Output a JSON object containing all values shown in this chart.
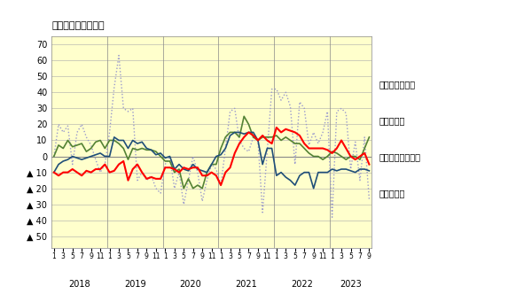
{
  "title": "（前年同月比、％）",
  "yticks_vals": [
    70,
    60,
    50,
    40,
    30,
    20,
    10,
    0,
    -10,
    -20,
    -30,
    -40,
    -50
  ],
  "ytick_labels": [
    "70",
    "60",
    "50",
    "40",
    "30",
    "20",
    "10",
    "0",
    "▲ 10",
    "▲ 20",
    "▲ 30",
    "▲ 40",
    "▲ 50"
  ],
  "ylim": [
    -57,
    75
  ],
  "bg_color": "#FFFFCC",
  "grid_color": "#AAAAAA",
  "months_per_year": [
    12,
    12,
    12,
    12,
    12,
    9
  ],
  "years": [
    2018,
    2019,
    2020,
    2021,
    2022,
    2023
  ],
  "legend_labels": [
    "分譲マンション",
    "貸家（赤）",
    "分譲一户建（緑）",
    "持家（青）"
  ],
  "jika": [
    -10,
    -5,
    -3,
    -2,
    0,
    -1,
    -2,
    -1,
    0,
    1,
    2,
    0,
    0,
    12,
    10,
    10,
    5,
    10,
    8,
    9,
    5,
    4,
    1,
    2,
    -1,
    0,
    -8,
    -5,
    -8,
    -9,
    -5,
    -8,
    -9,
    -10,
    -5,
    0,
    1,
    5,
    13,
    15,
    15,
    14,
    15,
    15,
    10,
    -5,
    5,
    5,
    -12,
    -10,
    -13,
    -15,
    -18,
    -12,
    -10,
    -10,
    -20,
    -10,
    -10,
    -10,
    -8,
    -9,
    -8,
    -8,
    -9,
    -10,
    -8,
    -8,
    -9
  ],
  "chinka": [
    -10,
    -12,
    -10,
    -10,
    -8,
    -10,
    -12,
    -9,
    -10,
    -8,
    -8,
    -5,
    -10,
    -9,
    -5,
    -3,
    -15,
    -8,
    -5,
    -10,
    -14,
    -13,
    -14,
    -14,
    -7,
    -7,
    -8,
    -10,
    -7,
    -8,
    -7,
    -7,
    -12,
    -12,
    -10,
    -12,
    -18,
    -10,
    -7,
    2,
    8,
    12,
    15,
    13,
    10,
    13,
    10,
    8,
    18,
    15,
    17,
    16,
    15,
    13,
    8,
    5,
    5,
    5,
    5,
    4,
    2,
    5,
    10,
    5,
    0,
    -2,
    0,
    2,
    -5
  ],
  "ikkodate": [
    0,
    7,
    5,
    10,
    6,
    7,
    8,
    3,
    5,
    9,
    10,
    5,
    10,
    10,
    8,
    5,
    -2,
    5,
    4,
    5,
    4,
    4,
    3,
    0,
    -3,
    -3,
    -10,
    -8,
    -20,
    -14,
    -20,
    -18,
    -20,
    -10,
    -5,
    -5,
    5,
    12,
    15,
    15,
    12,
    25,
    20,
    12,
    10,
    12,
    12,
    12,
    13,
    10,
    12,
    10,
    8,
    8,
    5,
    2,
    0,
    0,
    -2,
    0,
    3,
    2,
    0,
    -2,
    0,
    0,
    -2,
    5,
    12
  ],
  "manshon": [
    0,
    20,
    15,
    19,
    -5,
    15,
    20,
    12,
    7,
    -2,
    -10,
    -5,
    15,
    43,
    63,
    30,
    28,
    30,
    -15,
    -10,
    -15,
    -12,
    -20,
    -23,
    -5,
    0,
    -20,
    -10,
    -30,
    -15,
    0,
    -10,
    -28,
    -15,
    -5,
    -8,
    -18,
    5,
    28,
    30,
    10,
    5,
    3,
    12,
    10,
    -35,
    3,
    42,
    42,
    35,
    40,
    31,
    -5,
    34,
    30,
    7,
    15,
    8,
    15,
    28,
    -38,
    28,
    30,
    27,
    -8,
    9,
    -15,
    12,
    -27
  ],
  "color_jika": "#1F4E79",
  "color_chinka": "#FF0000",
  "color_ikkodate": "#548235",
  "color_manshon": "#9999CC"
}
